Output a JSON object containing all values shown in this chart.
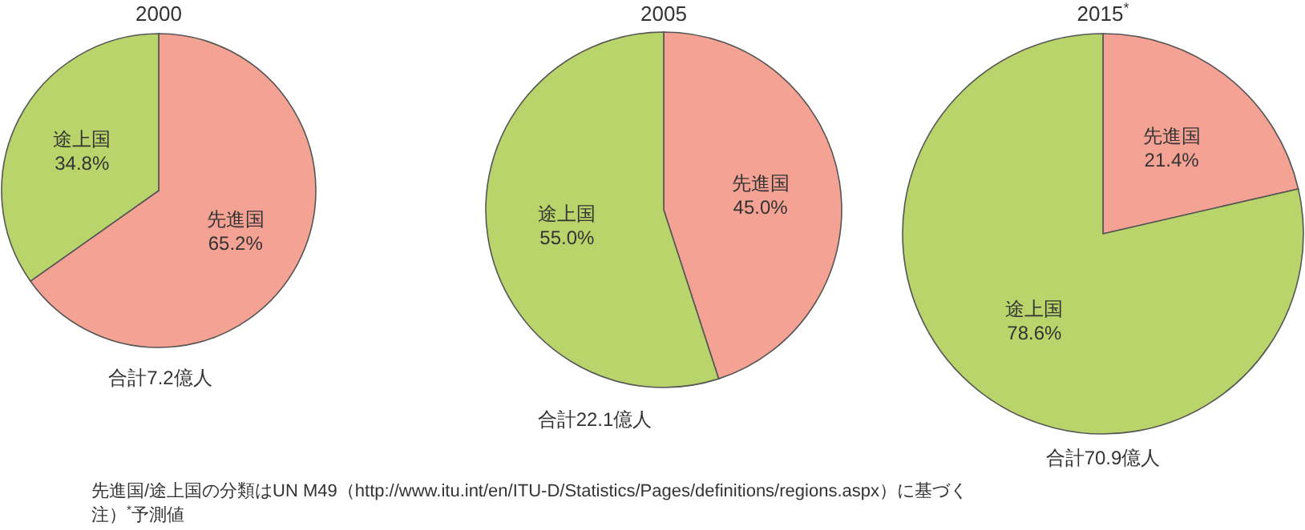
{
  "chart_data": [
    {
      "type": "pie",
      "title": "2000",
      "categories": [
        "先進国",
        "途上国"
      ],
      "values": [
        65.2,
        34.8
      ],
      "colors": [
        "#f4a294",
        "#b8d46a"
      ],
      "value_labels": [
        "65.2%",
        "34.8%"
      ],
      "annotations": [
        "合計7.2億人"
      ]
    },
    {
      "type": "pie",
      "title": "2005",
      "categories": [
        "先進国",
        "途上国"
      ],
      "values": [
        45.0,
        55.0
      ],
      "colors": [
        "#f4a294",
        "#b8d46a"
      ],
      "value_labels": [
        "45.0%",
        "55.0%"
      ],
      "annotations": [
        "合計22.1億人"
      ]
    },
    {
      "type": "pie",
      "title": "2015$^{*}$",
      "categories": [
        "先進国",
        "途上国"
      ],
      "values": [
        21.4,
        78.6
      ],
      "colors": [
        "#f4a294",
        "#b8d46a"
      ],
      "value_labels": [
        "21.4%",
        "78.6%"
      ],
      "annotations": [
        "合計70.9億人",
        "先進国/途上国の分類はUN M49（http://www.itu.int/en/ITU-D/Statistics/Pages/definitions/regions.aspx）に基づく",
        "注）$^{*}$予測値"
      ]
    }
  ]
}
